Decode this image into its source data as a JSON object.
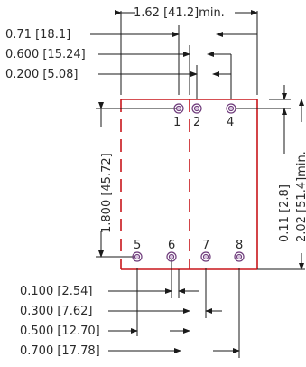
{
  "dimensions": {
    "top_width": "1.62  [41.2]min.",
    "top_071": "0.71  [18.1]",
    "top_0600": "0.600  [15.24]",
    "top_0200": "0.200  [5.08]",
    "left_1800": "1.800  [45.72]",
    "right_011": "0.11  [2.8]",
    "right_202": "2.02  [51.4]min.",
    "bot_0100": "0.100  [2.54]",
    "bot_0300": "0.300  [7.62]",
    "bot_0500": "0.500  [12.70]",
    "bot_0700": "0.700  [17.78]"
  },
  "pins": [
    {
      "label": "1"
    },
    {
      "label": "2"
    },
    {
      "label": "4"
    },
    {
      "label": "5"
    },
    {
      "label": "6"
    },
    {
      "label": "7"
    },
    {
      "label": "8"
    }
  ],
  "colors": {
    "outline": "#c8161b",
    "pad": "#6d3a7a",
    "line": "#1a1a1a"
  }
}
